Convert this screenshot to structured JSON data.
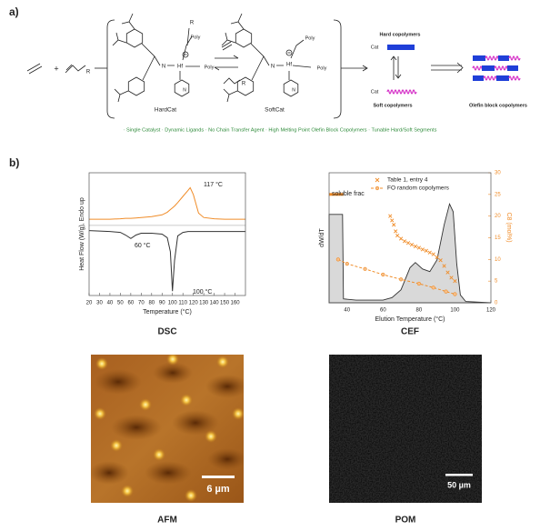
{
  "panel_a": {
    "label": "a)",
    "scheme_labels": [
      "+",
      "R",
      "R",
      "N",
      "Hf",
      "Poly",
      "Poly",
      "N",
      "HardCat",
      "R",
      "N",
      "Hf",
      "Poly",
      "Poly",
      "N",
      "SoftCat",
      "Hard copolymers",
      "Cat",
      "Soft copolymers",
      "Cat",
      "Olefin block copolymers"
    ],
    "features": "· Single Catalyst · Dynamic Ligands · No Chain Transfer Agent · High Melting Point Olefin Block Copolymers · Tunable Hard/Soft Segments"
  },
  "panel_b": {
    "label": "b)"
  },
  "chart_data": [
    {
      "type": "line",
      "title": "DSC",
      "xlabel": "Temperature (°C)",
      "ylabel": "Heat Flow (W/g), Endo up",
      "xlim": [
        20,
        170
      ],
      "xticks": [
        20,
        30,
        40,
        50,
        60,
        70,
        80,
        90,
        100,
        110,
        120,
        130,
        140,
        150,
        160
      ],
      "ylim": [
        -8,
        6
      ],
      "zero_line": true,
      "annotations": [
        "117 °C",
        "60 °C",
        "100 °C"
      ],
      "series": [
        {
          "color": "#f08c28",
          "x": [
            20,
            30,
            40,
            50,
            55,
            60,
            65,
            70,
            80,
            90,
            95,
            98,
            100,
            102,
            105,
            110,
            115,
            117,
            120,
            125,
            130,
            140,
            150,
            160,
            170
          ],
          "values": [
            0.7,
            0.7,
            0.7,
            0.75,
            0.8,
            0.8,
            0.85,
            0.9,
            1.0,
            1.2,
            1.5,
            1.8,
            2.0,
            2.2,
            2.6,
            3.3,
            4.0,
            4.3,
            3.5,
            1.4,
            0.9,
            0.75,
            0.7,
            0.7,
            0.7
          ]
        },
        {
          "color": "#333333",
          "x": [
            20,
            30,
            40,
            50,
            55,
            60,
            65,
            70,
            80,
            90,
            95,
            98,
            100,
            102,
            105,
            110,
            115,
            117,
            120,
            125,
            130,
            140,
            150,
            160,
            170
          ],
          "values": [
            -0.6,
            -0.65,
            -0.7,
            -0.8,
            -1.1,
            -1.5,
            -1.1,
            -0.9,
            -0.9,
            -1.0,
            -1.4,
            -3.0,
            -7.5,
            -4.0,
            -1.2,
            -0.8,
            -0.7,
            -0.7,
            -0.7,
            -0.7,
            -0.7,
            -0.7,
            -0.7,
            -0.7,
            -0.7
          ]
        }
      ]
    },
    {
      "type": "line",
      "title": "CEF",
      "xlabel": "Elution Temperature (°C)",
      "ylabel": "dW/dT",
      "y2label": "C8 (mol%)",
      "xlim": [
        30,
        120
      ],
      "xticks": [
        40,
        60,
        80,
        100,
        120
      ],
      "ylim": [
        0,
        1
      ],
      "y2lim": [
        0,
        30
      ],
      "y2ticks": [
        0,
        5,
        10,
        15,
        20,
        25,
        30
      ],
      "y2color": "#f08c28",
      "legend": "upper right",
      "annotations": [
        "soluble frac"
      ],
      "series": [
        {
          "color": "#333333",
          "fill": "#d9d9d9",
          "x": [
            30,
            37.5,
            38,
            45,
            60,
            65,
            70,
            75,
            78,
            82,
            86,
            90,
            94,
            97,
            99,
            101,
            103,
            106,
            120
          ],
          "values": [
            0.68,
            0.68,
            0.03,
            0.02,
            0.02,
            0.04,
            0.1,
            0.27,
            0.31,
            0.26,
            0.24,
            0.33,
            0.6,
            0.76,
            0.7,
            0.3,
            0.06,
            0.01,
            0.0
          ]
        },
        {
          "color": "#f08c28",
          "axis": "y2",
          "width": 3,
          "x": [
            30,
            38
          ],
          "values": [
            25,
            25
          ]
        },
        {
          "name": "Table 1, entry 4",
          "color": "#f08c28",
          "axis": "y2",
          "marker": "x",
          "x": [
            64,
            65,
            66,
            67,
            68,
            70,
            72,
            74,
            76,
            78,
            80,
            82,
            84,
            86,
            88,
            90,
            92,
            94,
            96,
            98,
            100
          ],
          "values": [
            20,
            19,
            18,
            16.5,
            15.5,
            14.8,
            14.2,
            13.8,
            13.4,
            13,
            12.7,
            12.3,
            12,
            11.6,
            11.2,
            10.5,
            9.8,
            8.5,
            7,
            5.8,
            5
          ]
        },
        {
          "name": "FO random copolymers",
          "color": "#f08c28",
          "axis": "y2",
          "marker": "o",
          "dash": true,
          "x": [
            35,
            40,
            50,
            60,
            70,
            80,
            88,
            95,
            100
          ],
          "values": [
            10,
            9,
            7.8,
            6.5,
            5.4,
            4.4,
            3.5,
            2.6,
            2.0
          ]
        }
      ]
    }
  ],
  "images": {
    "afm": {
      "caption": "AFM",
      "scale_bar": "6 µm"
    },
    "pom": {
      "caption": "POM",
      "scale_bar": "50 µm"
    }
  }
}
